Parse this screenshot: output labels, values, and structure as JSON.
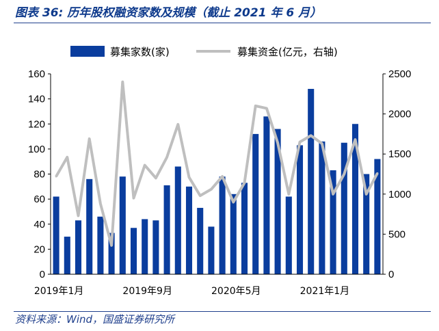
{
  "header": {
    "title": "图表 36:  历年股权融资家数及规模（截止 2021 年 6 月）"
  },
  "footer": {
    "source": "资料来源：Wind，国盛证券研究所"
  },
  "chart_data": {
    "type": "bar",
    "title": "",
    "x_tick_labels": [
      "2019年1月",
      "2019年9月",
      "2020年5月",
      "2021年1月"
    ],
    "categories": [
      "2019-01",
      "2019-02",
      "2019-03",
      "2019-04",
      "2019-05",
      "2019-06",
      "2019-07",
      "2019-08",
      "2019-09",
      "2019-10",
      "2019-11",
      "2019-12",
      "2020-01",
      "2020-02",
      "2020-03",
      "2020-04",
      "2020-05",
      "2020-06",
      "2020-07",
      "2020-08",
      "2020-09",
      "2020-10",
      "2020-11",
      "2020-12",
      "2021-01",
      "2021-02",
      "2021-03",
      "2021-04",
      "2021-05",
      "2021-06"
    ],
    "y_left": {
      "ylim": [
        0,
        160
      ],
      "ticks": [
        0,
        20,
        40,
        60,
        80,
        100,
        120,
        140,
        160
      ]
    },
    "y_right": {
      "ylim": [
        0,
        2500
      ],
      "ticks": [
        0,
        500,
        1000,
        1500,
        2000,
        2500
      ]
    },
    "series": [
      {
        "name": "募集家数(家)",
        "type": "bar",
        "axis": "left",
        "color": "#0a3d9e",
        "values": [
          62,
          30,
          43,
          76,
          46,
          33,
          78,
          37,
          44,
          43,
          71,
          86,
          70,
          53,
          38,
          78,
          64,
          73,
          112,
          126,
          116,
          62,
          103,
          148,
          106,
          83,
          105,
          120,
          80,
          92
        ]
      },
      {
        "name": "募集资金(亿元，右轴)",
        "type": "line",
        "axis": "right",
        "color": "#bfbfbf",
        "values": [
          1220,
          1460,
          730,
          1690,
          880,
          360,
          2400,
          950,
          1360,
          1200,
          1460,
          1870,
          1210,
          980,
          1060,
          1220,
          900,
          1140,
          2100,
          2070,
          1640,
          1000,
          1650,
          1730,
          1630,
          1000,
          1250,
          1680,
          1000,
          1260
        ]
      }
    ]
  }
}
